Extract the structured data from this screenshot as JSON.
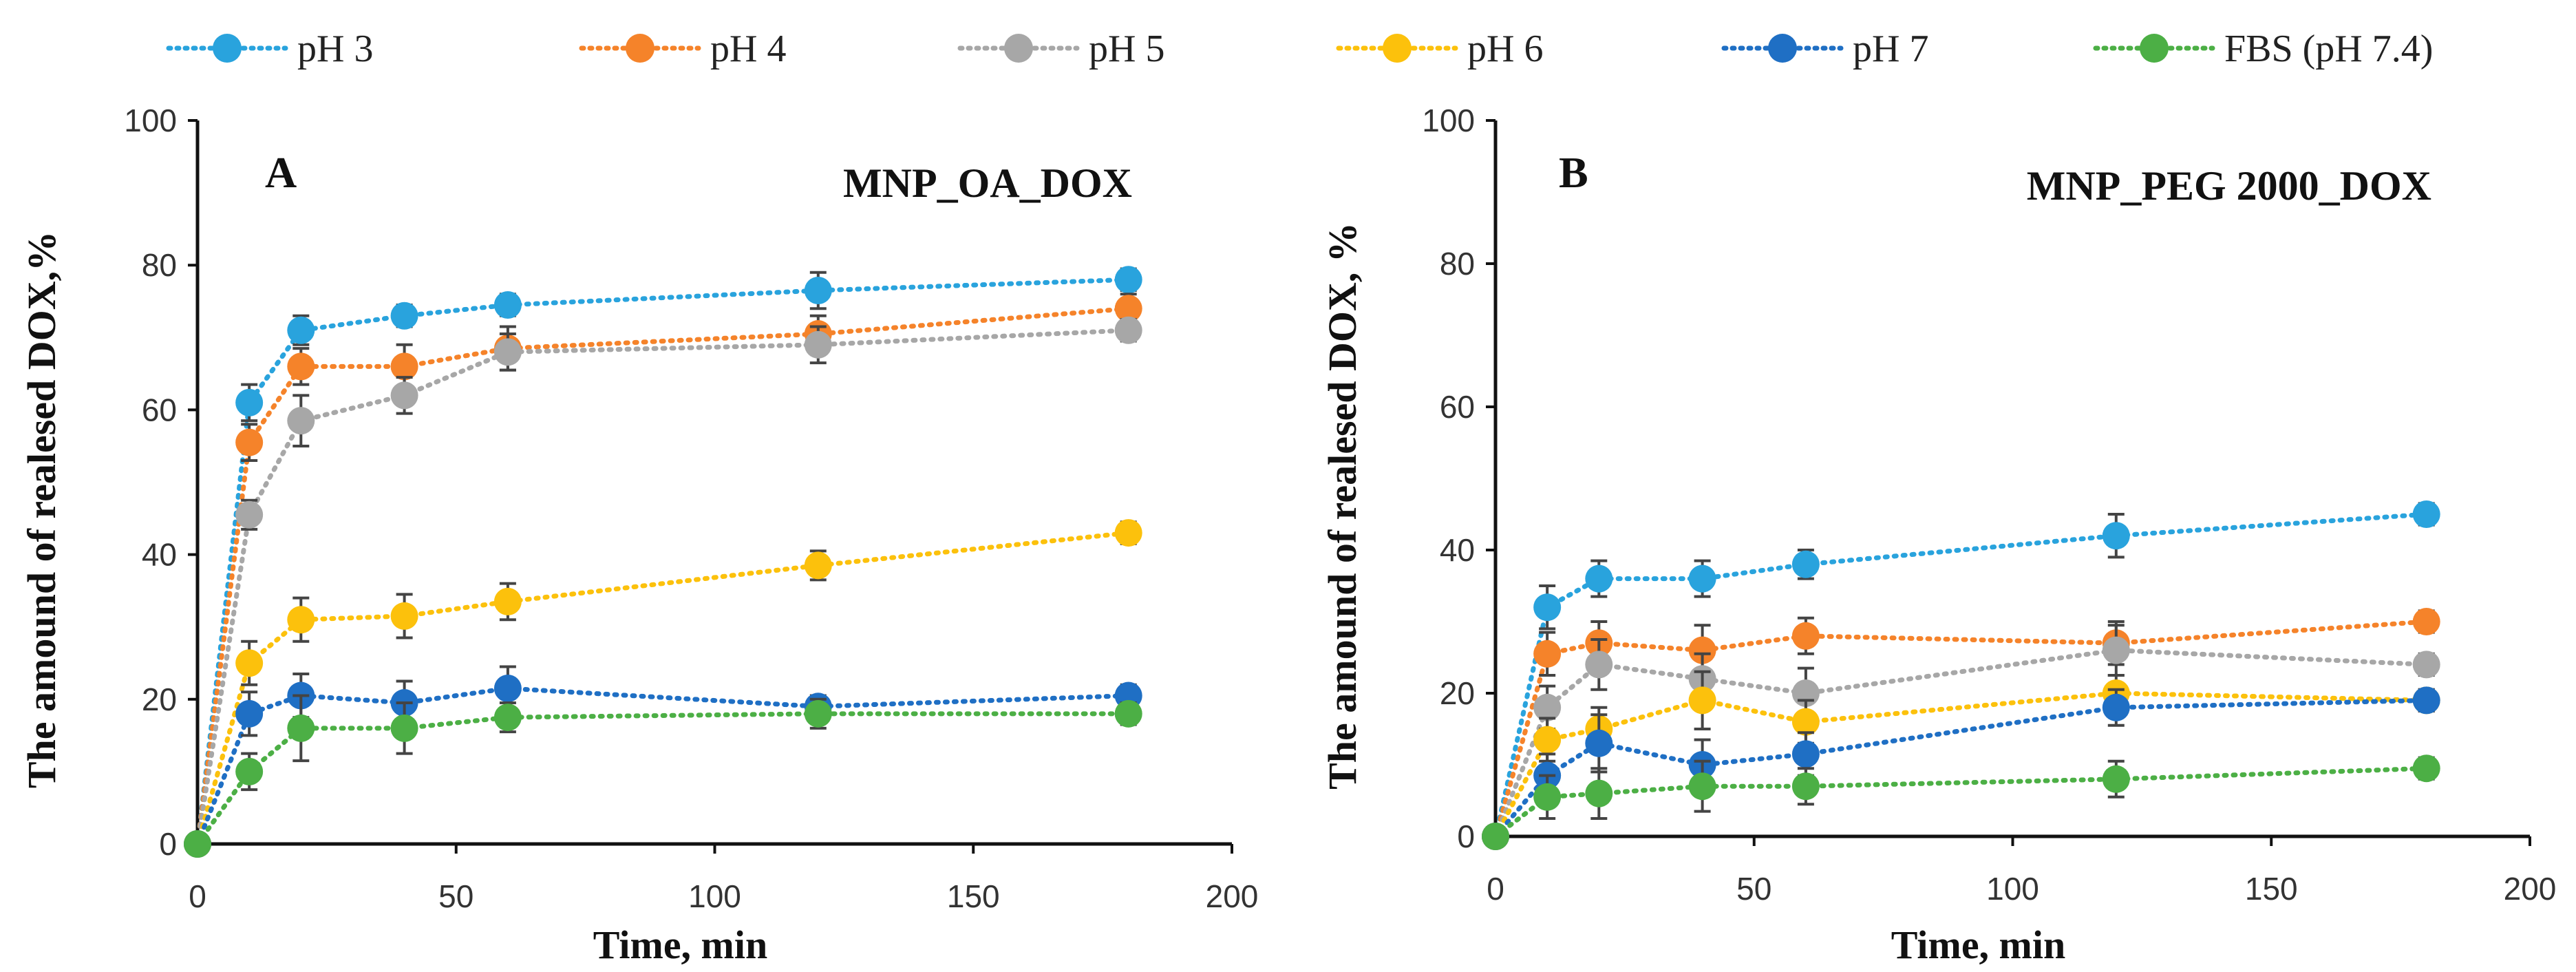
{
  "legend": [
    {
      "name": "pH 3",
      "color": "#29a3dd"
    },
    {
      "name": "pH 4",
      "color": "#f5832a"
    },
    {
      "name": "pH 5",
      "color": "#a7a7a7"
    },
    {
      "name": "pH 6",
      "color": "#fcc10c"
    },
    {
      "name": "pH 7",
      "color": "#1f6fc4"
    },
    {
      "name": "FBS (pH 7.4)",
      "color": "#4caf45"
    }
  ],
  "chart_data": [
    {
      "type": "line",
      "panel": "A",
      "title": "MNP_OA_DOX",
      "xlabel": "Time, min",
      "ylabel": "The amound of realesed DOX,%",
      "xlim": [
        0,
        200
      ],
      "ylim": [
        0,
        100
      ],
      "xticks": [
        "0",
        "50",
        "100",
        "150",
        "200"
      ],
      "yticks": [
        "0",
        "20",
        "40",
        "60",
        "80",
        "100"
      ],
      "grid": false,
      "x": [
        0,
        10,
        20,
        40,
        60,
        120,
        180
      ],
      "series": [
        {
          "name": "pH 3",
          "values": [
            0,
            61,
            71,
            73,
            74.5,
            76.5,
            78
          ],
          "errors": [
            0,
            2.5,
            2,
            1.5,
            1.5,
            2.5,
            1.5
          ]
        },
        {
          "name": "pH 4",
          "values": [
            0,
            55.5,
            66,
            66,
            68.5,
            70.5,
            74
          ],
          "errors": [
            0,
            2.5,
            2.5,
            3,
            3,
            2.5,
            2
          ]
        },
        {
          "name": "pH 5",
          "values": [
            0,
            45.5,
            58.5,
            62,
            68,
            69,
            71
          ],
          "errors": [
            0,
            2,
            3.5,
            2.5,
            2.5,
            2.5,
            1.5
          ]
        },
        {
          "name": "pH 6",
          "values": [
            0,
            25,
            31,
            31.5,
            33.5,
            38.5,
            43
          ],
          "errors": [
            0,
            3,
            3,
            3,
            2.5,
            2,
            1.5
          ]
        },
        {
          "name": "pH 7",
          "values": [
            0,
            18,
            20.5,
            19.5,
            21.5,
            19,
            20.5
          ],
          "errors": [
            0,
            3,
            3,
            3,
            3,
            1.5,
            1.5
          ]
        },
        {
          "name": "FBS (pH 7.4)",
          "values": [
            0,
            10,
            16,
            16,
            17.5,
            18,
            18
          ],
          "errors": [
            0,
            2.5,
            4.5,
            3.5,
            2,
            2,
            1.5
          ]
        }
      ]
    },
    {
      "type": "line",
      "panel": "B",
      "title": "MNP_PEG 2000_DOX",
      "xlabel": "Time, min",
      "ylabel": "The amound of realesed DOX, %",
      "xlim": [
        0,
        200
      ],
      "ylim": [
        0,
        100
      ],
      "xticks": [
        "0",
        "50",
        "100",
        "150",
        "200"
      ],
      "yticks": [
        "0",
        "20",
        "40",
        "60",
        "80",
        "100"
      ],
      "grid": false,
      "x": [
        0,
        10,
        20,
        40,
        60,
        120,
        180
      ],
      "series": [
        {
          "name": "pH 3",
          "values": [
            0,
            32,
            36,
            36,
            38,
            42,
            45
          ],
          "errors": [
            0,
            3,
            2.5,
            2.5,
            2,
            3,
            1.5
          ]
        },
        {
          "name": "pH 4",
          "values": [
            0,
            25.5,
            27,
            26,
            28,
            27,
            30
          ],
          "errors": [
            0,
            3,
            3,
            3.5,
            2.5,
            3,
            1.5
          ]
        },
        {
          "name": "pH 5",
          "values": [
            0,
            18,
            24,
            22,
            20,
            26,
            24
          ],
          "errors": [
            0,
            3,
            3.5,
            3.5,
            3.5,
            3.5,
            1.5
          ]
        },
        {
          "name": "pH 6",
          "values": [
            0,
            13.5,
            15,
            19,
            16,
            20,
            19
          ],
          "errors": [
            0,
            3,
            3,
            4,
            3,
            2.5,
            1.5
          ]
        },
        {
          "name": "pH 7",
          "values": [
            0,
            8.5,
            13,
            10,
            11.5,
            18,
            19
          ],
          "errors": [
            0,
            3,
            4,
            3.5,
            3,
            2.5,
            1.5
          ]
        },
        {
          "name": "FBS (pH 7.4)",
          "values": [
            0,
            5.5,
            6,
            7,
            7,
            8,
            9.5
          ],
          "errors": [
            0,
            3,
            3.5,
            3.5,
            2.5,
            2.5,
            1.5
          ]
        }
      ]
    }
  ]
}
